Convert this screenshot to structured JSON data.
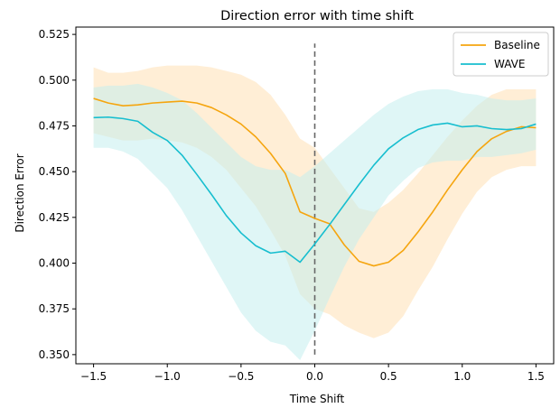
{
  "chart_data": {
    "type": "line",
    "title": "Direction error with time shift",
    "xlabel": "Time Shift",
    "ylabel": "Direction Error",
    "xlim": [
      -1.62,
      1.62
    ],
    "ylim": [
      0.345,
      0.529
    ],
    "xticks": [
      -1.5,
      -1.0,
      -0.5,
      0.0,
      0.5,
      1.0,
      1.5
    ],
    "xtick_labels": [
      "−1.5",
      "−1.0",
      "−0.5",
      "0.0",
      "0.5",
      "1.0",
      "1.5"
    ],
    "yticks": [
      0.35,
      0.375,
      0.4,
      0.425,
      0.45,
      0.475,
      0.5,
      0.525
    ],
    "ytick_labels": [
      "0.350",
      "0.375",
      "0.400",
      "0.425",
      "0.450",
      "0.475",
      "0.500",
      "0.525"
    ],
    "grid": false,
    "legend_position": "top-right",
    "vline": {
      "x": 0.0,
      "ymin": 0.35,
      "ymax": 0.52,
      "style": "dashed",
      "color": "#666666"
    },
    "x": [
      -1.5,
      -1.4,
      -1.3,
      -1.2,
      -1.1,
      -1.0,
      -0.9,
      -0.8,
      -0.7,
      -0.6,
      -0.5,
      -0.4,
      -0.3,
      -0.2,
      -0.1,
      0.0,
      0.1,
      0.2,
      0.3,
      0.4,
      0.5,
      0.6,
      0.7,
      0.8,
      0.9,
      1.0,
      1.1,
      1.2,
      1.3,
      1.4,
      1.5
    ],
    "series": [
      {
        "name": "Baseline",
        "color": "#f5a50f",
        "band_color": "#ffe8c8",
        "values": [
          0.49,
          0.4875,
          0.486,
          0.4865,
          0.4875,
          0.488,
          0.4885,
          0.4875,
          0.485,
          0.481,
          0.476,
          0.469,
          0.46,
          0.449,
          0.428,
          0.4245,
          0.4215,
          0.41,
          0.401,
          0.3985,
          0.4005,
          0.407,
          0.417,
          0.428,
          0.44,
          0.451,
          0.461,
          0.468,
          0.472,
          0.4745,
          0.474
        ],
        "lower": [
          0.471,
          0.469,
          0.467,
          0.467,
          0.468,
          0.467,
          0.466,
          0.463,
          0.458,
          0.451,
          0.441,
          0.431,
          0.418,
          0.404,
          0.383,
          0.375,
          0.372,
          0.366,
          0.362,
          0.359,
          0.362,
          0.371,
          0.385,
          0.398,
          0.413,
          0.427,
          0.439,
          0.447,
          0.451,
          0.453,
          0.453
        ],
        "upper": [
          0.507,
          0.504,
          0.504,
          0.505,
          0.507,
          0.508,
          0.508,
          0.508,
          0.507,
          0.505,
          0.503,
          0.499,
          0.492,
          0.481,
          0.468,
          0.463,
          0.452,
          0.441,
          0.43,
          0.428,
          0.433,
          0.44,
          0.449,
          0.459,
          0.469,
          0.478,
          0.486,
          0.492,
          0.495,
          0.495,
          0.495
        ]
      },
      {
        "name": "WAVE",
        "color": "#17becf",
        "band_color": "#c5eeee",
        "values": [
          0.4795,
          0.4798,
          0.479,
          0.4775,
          0.4715,
          0.467,
          0.459,
          0.4485,
          0.4375,
          0.426,
          0.4165,
          0.4095,
          0.4055,
          0.4065,
          0.4005,
          0.4105,
          0.421,
          0.432,
          0.443,
          0.4535,
          0.4625,
          0.4685,
          0.473,
          0.4755,
          0.4765,
          0.4745,
          0.475,
          0.4735,
          0.473,
          0.4735,
          0.476
        ],
        "lower": [
          0.463,
          0.463,
          0.461,
          0.457,
          0.449,
          0.441,
          0.429,
          0.415,
          0.401,
          0.387,
          0.373,
          0.363,
          0.357,
          0.355,
          0.347,
          0.363,
          0.381,
          0.398,
          0.413,
          0.425,
          0.437,
          0.445,
          0.452,
          0.455,
          0.456,
          0.456,
          0.458,
          0.458,
          0.459,
          0.46,
          0.462
        ],
        "upper": [
          0.496,
          0.497,
          0.497,
          0.498,
          0.496,
          0.493,
          0.489,
          0.482,
          0.474,
          0.466,
          0.458,
          0.453,
          0.451,
          0.451,
          0.447,
          0.453,
          0.46,
          0.467,
          0.474,
          0.481,
          0.487,
          0.491,
          0.494,
          0.495,
          0.495,
          0.493,
          0.492,
          0.49,
          0.489,
          0.489,
          0.49
        ]
      }
    ]
  }
}
